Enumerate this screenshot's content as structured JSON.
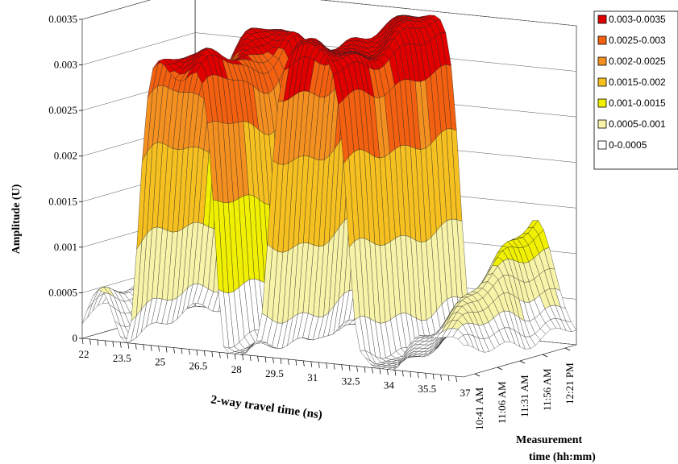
{
  "chart_data": {
    "type": "surface",
    "title": "",
    "ylabel": "Amplitude (U)",
    "xlabel": "2-way travel time (ns)",
    "zlabel_lines": [
      "Measurement",
      "time (hh:mm)"
    ],
    "x_ticks": [
      "22",
      "23.5",
      "25",
      "26.5",
      "28",
      "29.5",
      "31",
      "32.5",
      "34",
      "35.5",
      "37"
    ],
    "y_ticks": [
      "0",
      "0.0005",
      "0.001",
      "0.0015",
      "0.002",
      "0.0025",
      "0.003",
      "0.0035"
    ],
    "y_tick_values": [
      0,
      0.0005,
      0.001,
      0.0015,
      0.002,
      0.0025,
      0.003,
      0.0035
    ],
    "ylim": [
      0,
      0.0035
    ],
    "xlim": [
      22,
      37
    ],
    "z_ticks": [
      "10:41 AM",
      "11:06 AM",
      "11:31 AM",
      "11:56 AM",
      "12:21 PM"
    ],
    "legend_position": "right",
    "legend": [
      {
        "label": "0.003-0.0035",
        "color": "#e00000"
      },
      {
        "label": "0.0025-0.003",
        "color": "#f26010"
      },
      {
        "label": "0.002-0.0025",
        "color": "#f49020"
      },
      {
        "label": "0.0015-0.002",
        "color": "#f6c020"
      },
      {
        "label": "0.001-0.0015",
        "color": "#f0f000"
      },
      {
        "label": "0.0005-0.001",
        "color": "#f7f3a8"
      },
      {
        "label": "0-0.0005",
        "color": "#ffffff"
      }
    ],
    "band_bounds": [
      0,
      0.0005,
      0.001,
      0.0015,
      0.002,
      0.0025,
      0.003,
      0.0035
    ],
    "peaks": [
      {
        "x": 25.8,
        "y": 0.0031,
        "note": "first wide peak"
      },
      {
        "x": 30.8,
        "y": 0.0034,
        "note": "second wide peak"
      },
      {
        "x": 36.0,
        "y": 0.00125,
        "note": "late smaller peak"
      }
    ]
  }
}
